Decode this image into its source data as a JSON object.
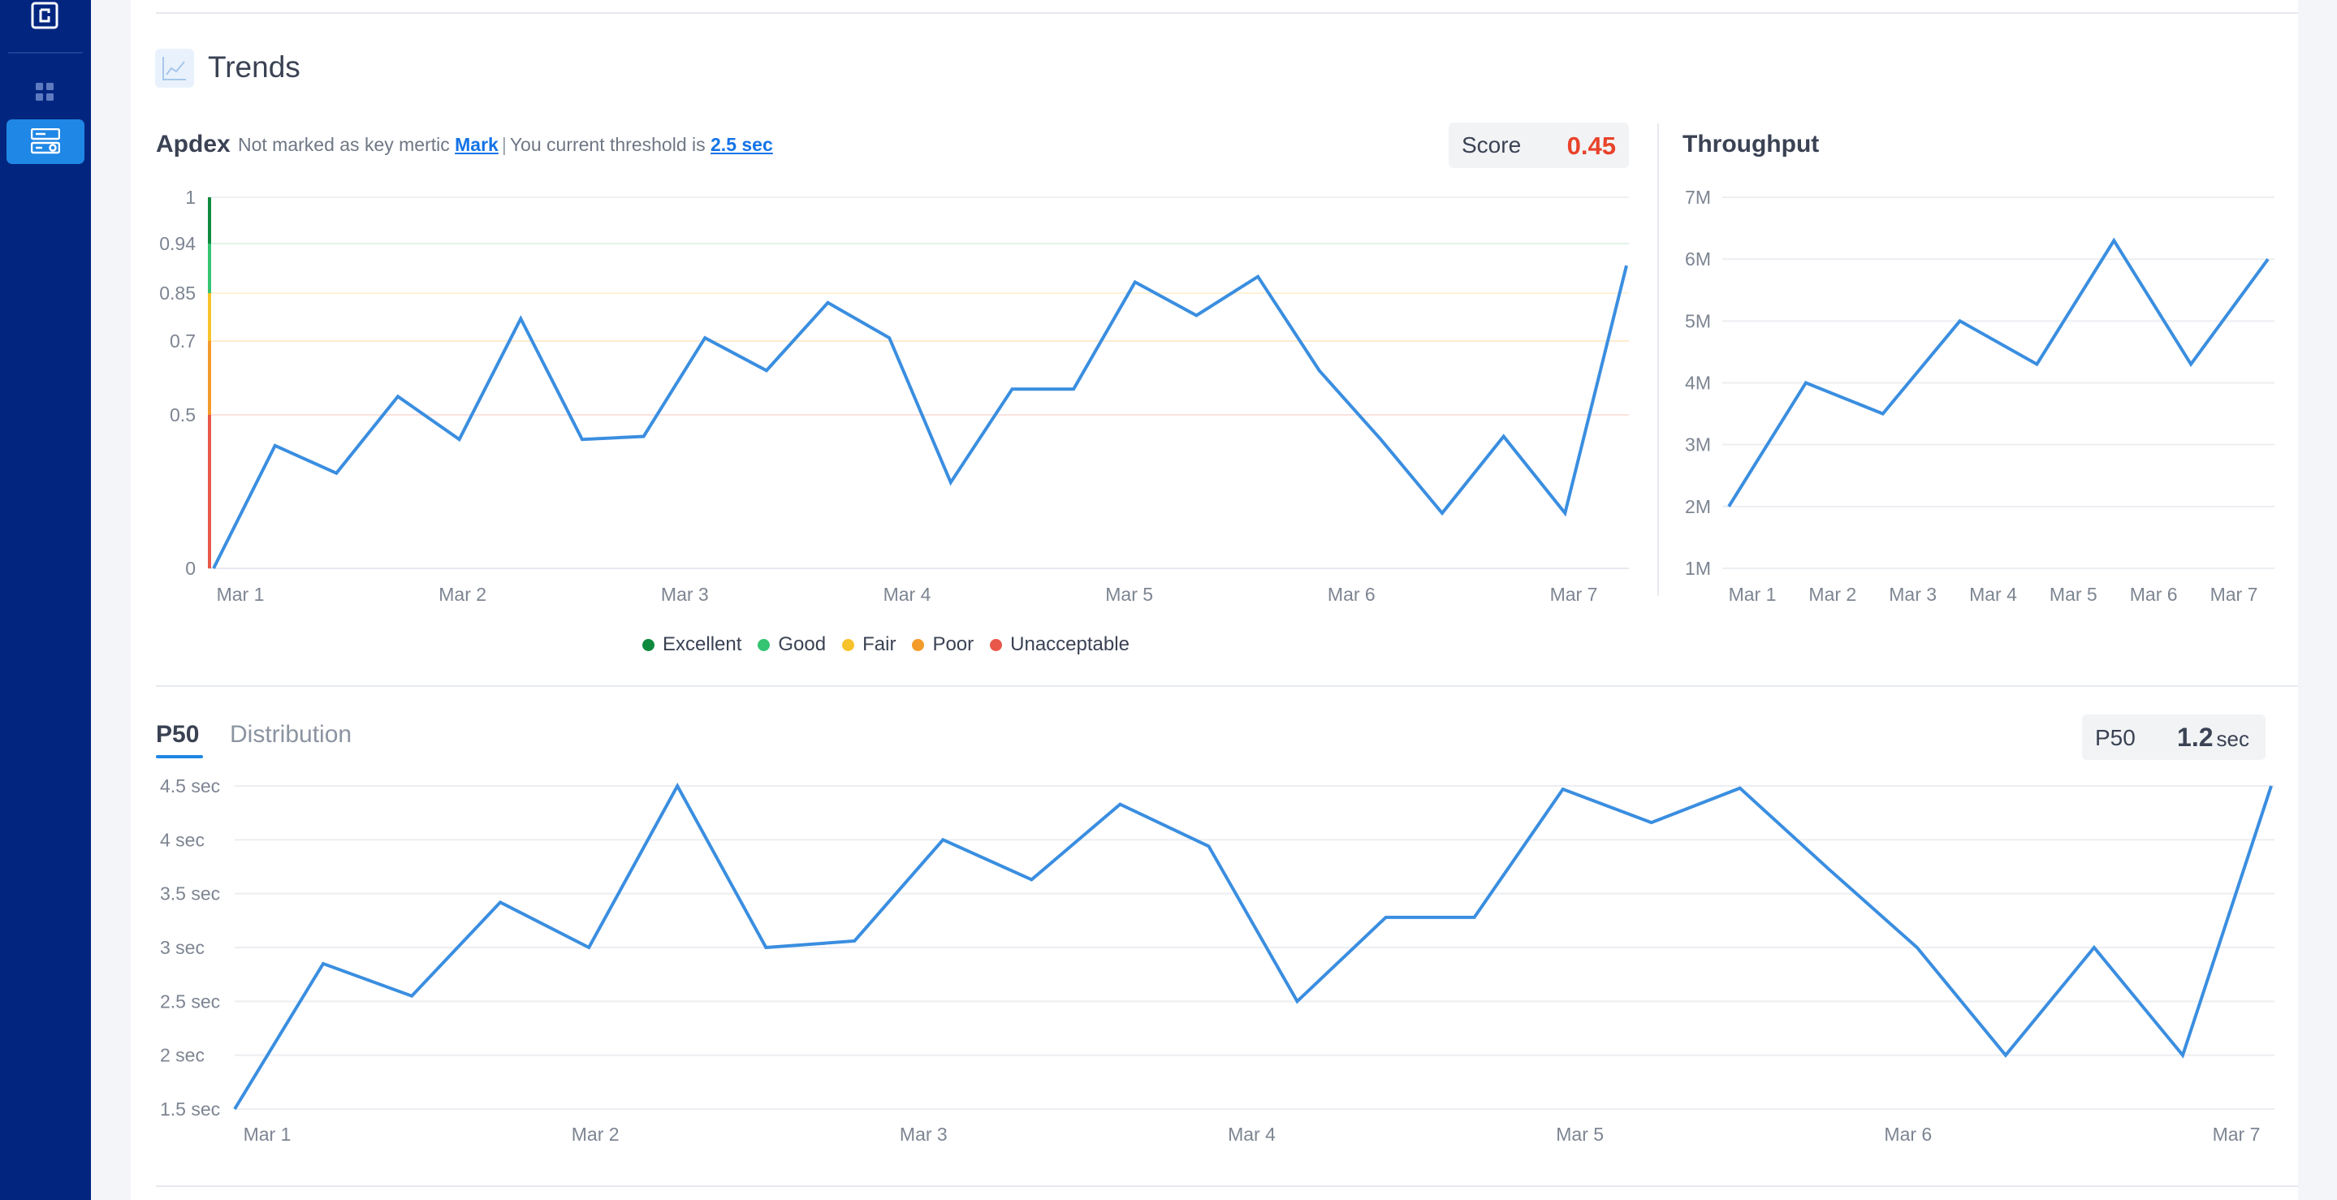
{
  "trends": {
    "title": "Trends"
  },
  "apdex": {
    "label": "Apdex",
    "note_prefix": "Not marked as key mertic",
    "mark_link": "Mark",
    "threshold_prefix": "You current threshold is",
    "threshold_value": "2.5 sec",
    "score_label": "Score",
    "score_value": "0.45"
  },
  "throughput": {
    "title": "Throughput"
  },
  "legend": [
    {
      "label": "Excellent",
      "color": "#0e8a3e"
    },
    {
      "label": "Good",
      "color": "#35c472"
    },
    {
      "label": "Fair",
      "color": "#f7c32c"
    },
    {
      "label": "Poor",
      "color": "#f39b2b"
    },
    {
      "label": "Unacceptable",
      "color": "#e8574a"
    }
  ],
  "latency": {
    "tab_active": "P50",
    "tab_inactive": "Distribution",
    "stat_label": "P50",
    "stat_value": "1.2",
    "stat_unit": "sec"
  },
  "chart_data": [
    {
      "type": "line",
      "title": "Apdex",
      "y_ticks": [
        "1",
        "0.94",
        "0.85",
        "0.7",
        "0.5",
        "0"
      ],
      "x_ticks": [
        "Mar 1",
        "Mar 2",
        "Mar 3",
        "Mar 4",
        "Mar 5",
        "Mar 6",
        "Mar 7"
      ],
      "ylim": [
        0,
        1
      ],
      "line_color": "#3a8ee0",
      "series": [
        {
          "values": [
            0.0,
            0.4,
            0.31,
            0.55,
            0.42,
            0.77,
            0.42,
            0.43,
            0.71,
            0.62,
            0.82,
            0.71,
            0.28,
            0.57,
            0.57,
            0.87,
            0.78,
            0.88,
            0.62,
            0.42,
            0.18,
            0.43,
            0.18,
            0.9
          ]
        }
      ]
    },
    {
      "type": "line",
      "title": "Throughput",
      "y_ticks": [
        "7M",
        "6M",
        "5M",
        "4M",
        "3M",
        "2M",
        "1M"
      ],
      "x_ticks": [
        "Mar 1",
        "Mar 2",
        "Mar 3",
        "Mar 4",
        "Mar 5",
        "Mar 6",
        "Mar 7"
      ],
      "ylim": [
        1000000,
        7000000
      ],
      "line_color": "#3a8ee0",
      "series": [
        {
          "values": [
            2000000,
            4000000,
            3500000,
            5000000,
            4300000,
            6300000,
            4300000,
            6000000
          ]
        }
      ]
    },
    {
      "type": "line",
      "title": "P50",
      "y_ticks": [
        "4.5 sec",
        "4 sec",
        "3.5 sec",
        "3 sec",
        "2.5 sec",
        "2 sec",
        "1.5 sec"
      ],
      "x_ticks": [
        "Mar 1",
        "Mar 2",
        "Mar 3",
        "Mar 4",
        "Mar 5",
        "Mar 6",
        "Mar 7"
      ],
      "ylim": [
        1.5,
        4.5
      ],
      "line_color": "#3a8ee0",
      "series": [
        {
          "values": [
            1.5,
            2.85,
            2.55,
            3.42,
            3.0,
            4.5,
            3.0,
            3.06,
            4.0,
            3.63,
            4.33,
            3.94,
            2.5,
            3.28,
            3.28,
            4.47,
            4.16,
            4.48,
            3.73,
            3.0,
            2.0,
            3.0,
            2.0,
            4.5
          ]
        }
      ]
    }
  ]
}
